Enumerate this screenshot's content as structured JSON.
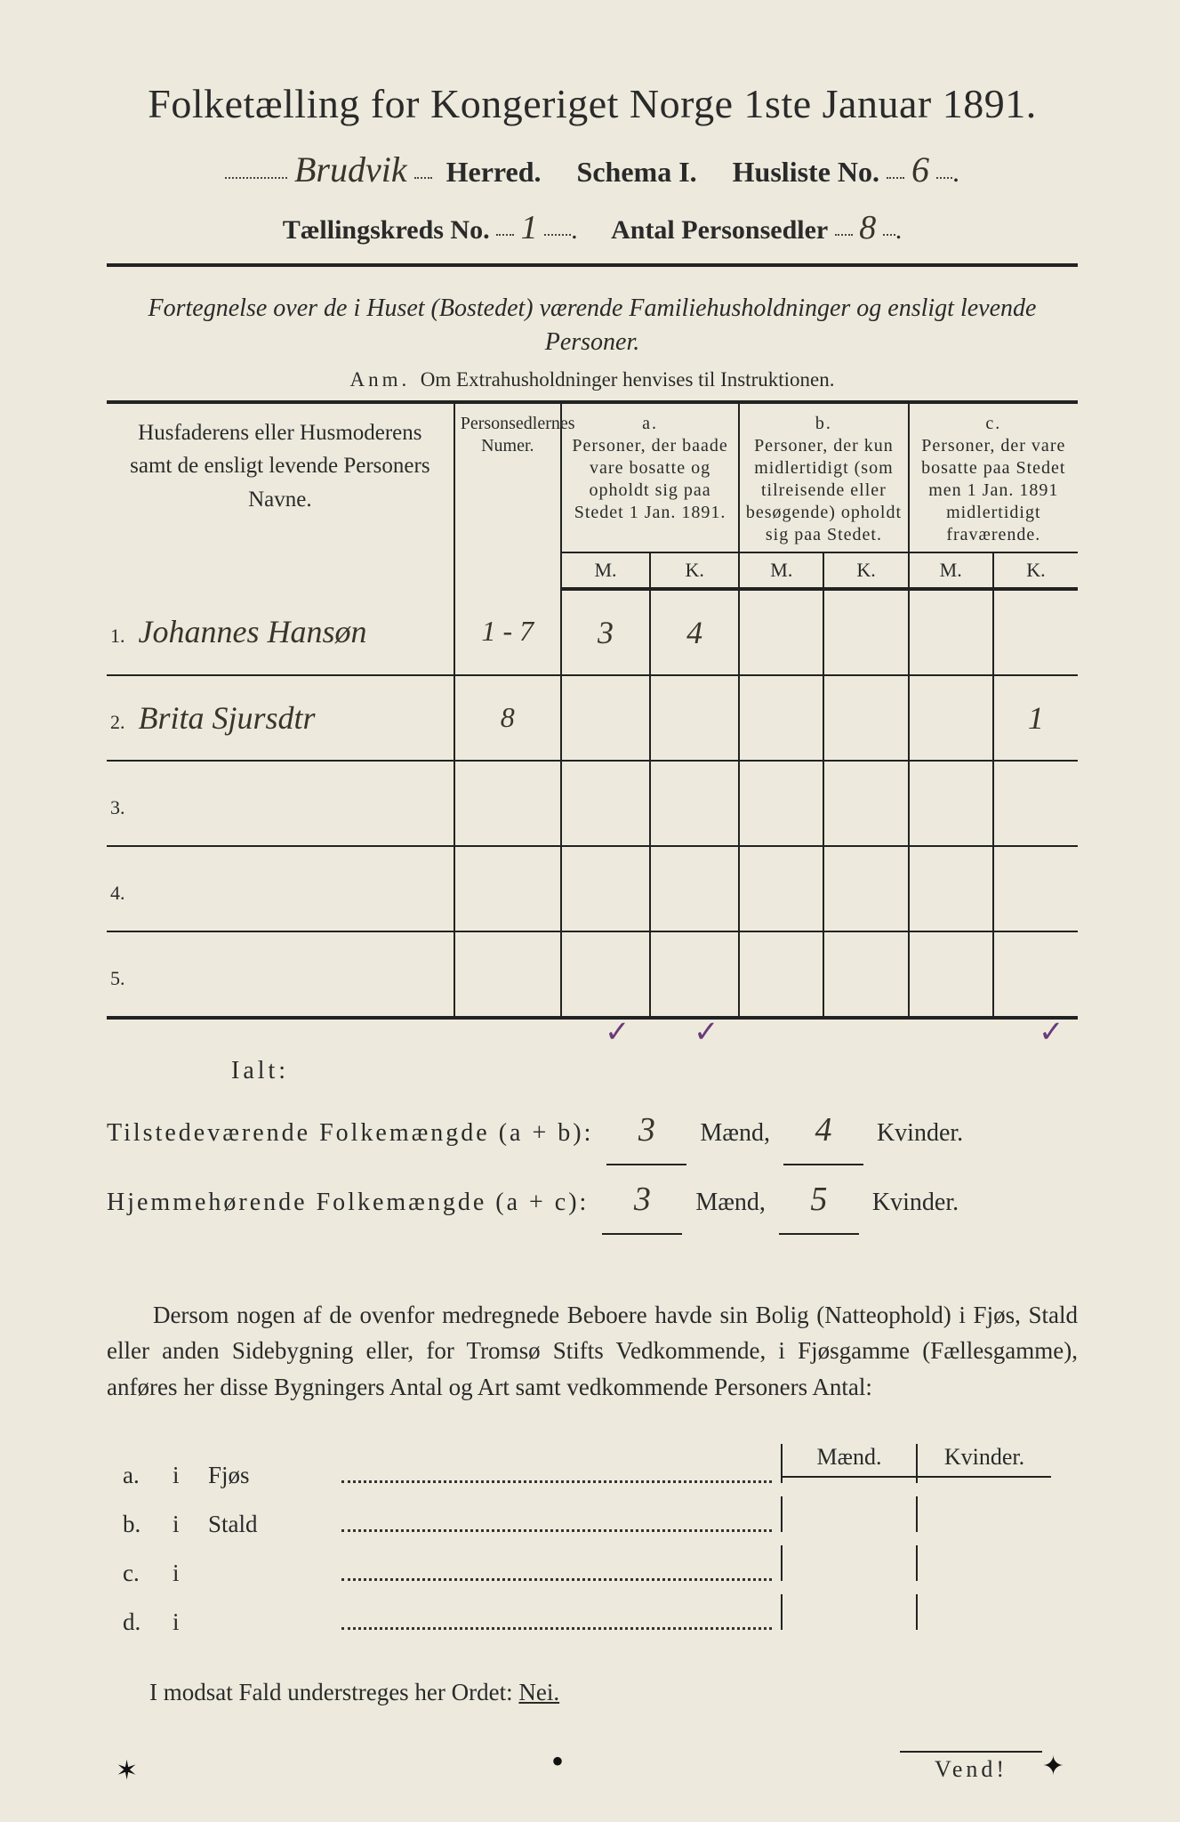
{
  "title": "Folketælling for Kongeriget Norge 1ste Januar 1891.",
  "header": {
    "herred_value": "Brudvik",
    "herred_label": "Herred.",
    "schema_label": "Schema I.",
    "husliste_label": "Husliste No.",
    "husliste_value": "6",
    "kreds_label": "Tællingskreds No.",
    "kreds_value": "1",
    "antal_label": "Antal Personsedler",
    "antal_value": "8"
  },
  "subtitle": "Fortegnelse over de i Huset (Bostedet) værende Familiehusholdninger og ensligt levende Personer.",
  "anm_lead": "Anm.",
  "anm_text": "Om Extrahusholdninger henvises til Instruktionen.",
  "table": {
    "col_name": "Husfaderens eller Husmoderens samt de ensligt levende Personers Navne.",
    "col_numer": "Personsedlernes Numer.",
    "col_a_tag": "a.",
    "col_a": "Personer, der baade vare bosatte og opholdt sig paa Stedet 1 Jan. 1891.",
    "col_b_tag": "b.",
    "col_b": "Personer, der kun midlertidigt (som tilreisende eller besøgende) opholdt sig paa Stedet.",
    "col_c_tag": "c.",
    "col_c": "Personer, der vare bosatte paa Stedet men 1 Jan. 1891 midlertidigt fraværende.",
    "m": "M.",
    "k": "K.",
    "rows": [
      {
        "n": "1.",
        "name": "Johannes Hansøn",
        "numer": "1 - 7",
        "a_m": "3",
        "a_k": "4",
        "b_m": "",
        "b_k": "",
        "c_m": "",
        "c_k": ""
      },
      {
        "n": "2.",
        "name": "Brita Sjursdtr",
        "numer": "8",
        "a_m": "",
        "a_k": "",
        "b_m": "",
        "b_k": "",
        "c_m": "",
        "c_k": "1"
      },
      {
        "n": "3.",
        "name": "",
        "numer": "",
        "a_m": "",
        "a_k": "",
        "b_m": "",
        "b_k": "",
        "c_m": "",
        "c_k": ""
      },
      {
        "n": "4.",
        "name": "",
        "numer": "",
        "a_m": "",
        "a_k": "",
        "b_m": "",
        "b_k": "",
        "c_m": "",
        "c_k": ""
      },
      {
        "n": "5.",
        "name": "",
        "numer": "",
        "a_m": "",
        "a_k": "",
        "b_m": "",
        "b_k": "",
        "c_m": "",
        "c_k": ""
      }
    ],
    "ticks": {
      "char": "✓"
    }
  },
  "totals": {
    "ialt": "Ialt:",
    "line1_label": "Tilstedeværende Folkemængde (a + b):",
    "line1_m": "3",
    "line1_k": "4",
    "line2_label": "Hjemmehørende Folkemængde (a + c):",
    "line2_m": "3",
    "line2_k": "5",
    "maend": "Mænd,",
    "kvinder": "Kvinder."
  },
  "paragraph": "Dersom nogen af de ovenfor medregnede Beboere havde sin Bolig (Natteophold) i Fjøs, Stald eller anden Sidebygning eller, for Tromsø Stifts Vedkommende, i Fjøsgamme (Fællesgamme), anføres her disse Bygningers Antal og Art samt vedkommende Personers Antal:",
  "outbuild": {
    "maend": "Mænd.",
    "kvinder": "Kvinder.",
    "rows": [
      {
        "tag": "a.",
        "i": "i",
        "name": "Fjøs"
      },
      {
        "tag": "b.",
        "i": "i",
        "name": "Stald"
      },
      {
        "tag": "c.",
        "i": "i",
        "name": ""
      },
      {
        "tag": "d.",
        "i": "i",
        "name": ""
      }
    ]
  },
  "nei_line": "I modsat Fald understreges her Ordet:",
  "nei_word": "Nei.",
  "vend": "Vend!",
  "colors": {
    "paper": "#edeadd",
    "ink": "#2a2a2a",
    "hand": "#3a342c",
    "tick": "#6a3a7a"
  }
}
